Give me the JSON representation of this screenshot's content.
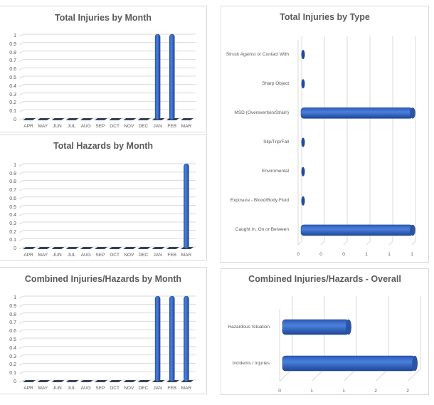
{
  "colors": {
    "bar": "#3a6fd0",
    "bar_dark": "#1f4a9e",
    "floor": "#1f2d4a",
    "grid": "#d9d9d9",
    "text": "#595959",
    "border": "#d9d9d9"
  },
  "chart_data": [
    {
      "id": "injuries_by_month",
      "type": "bar",
      "title": "Total Injuries by Month",
      "categories": [
        "APR",
        "MAY",
        "JUN",
        "JUL",
        "AUG",
        "SEP",
        "OCT",
        "NOV",
        "DEC",
        "JAN",
        "FEB",
        "MAR"
      ],
      "values": [
        0,
        0,
        0,
        0,
        0,
        0,
        0,
        0,
        0,
        1,
        1,
        0
      ],
      "yticks": [
        "1",
        "0.9",
        "0.8",
        "0.7",
        "0.6",
        "0.5",
        "0.4",
        "0.3",
        "0.2",
        "0.1",
        "0"
      ],
      "ylim": [
        0,
        1
      ],
      "xlabel": "",
      "ylabel": "",
      "grid": true,
      "style": "3d-cylinder"
    },
    {
      "id": "hazards_by_month",
      "type": "bar",
      "title": "Total Hazards by Month",
      "categories": [
        "APR",
        "MAY",
        "JUN",
        "JUL",
        "AUG",
        "SEP",
        "OCT",
        "NOV",
        "DEC",
        "JAN",
        "FEB",
        "MAR"
      ],
      "values": [
        0,
        0,
        0,
        0,
        0,
        0,
        0,
        0,
        0,
        0,
        0,
        1
      ],
      "yticks": [
        "1",
        "0.9",
        "0.8",
        "0.7",
        "0.6",
        "0.5",
        "0.4",
        "0.3",
        "0.2",
        "0.1",
        "0"
      ],
      "ylim": [
        0,
        1
      ],
      "xlabel": "",
      "ylabel": "",
      "grid": true,
      "style": "3d-cylinder"
    },
    {
      "id": "combined_by_month",
      "type": "bar",
      "title": "Combined Injuries/Hazards by Month",
      "categories": [
        "APR",
        "MAY",
        "JUN",
        "JUL",
        "AUG",
        "SEP",
        "OCT",
        "NOV",
        "DEC",
        "JAN",
        "FEB",
        "MAR"
      ],
      "values": [
        0,
        0,
        0,
        0,
        0,
        0,
        0,
        0,
        0,
        1,
        1,
        1
      ],
      "yticks": [
        "1",
        "0.9",
        "0.8",
        "0.7",
        "0.6",
        "0.5",
        "0.4",
        "0.3",
        "0.2",
        "0.1",
        "0"
      ],
      "ylim": [
        0,
        1
      ],
      "xlabel": "",
      "ylabel": "",
      "grid": true,
      "style": "3d-cylinder"
    },
    {
      "id": "injuries_by_type",
      "type": "bar",
      "orientation": "horizontal",
      "title": "Total Injuries by Type",
      "categories": [
        "Struck Against or Contact With",
        "Sharp Object",
        "MSD (Overexertion/Strain)",
        "Slip/Trip/Fall",
        "Enviromental",
        "Exposure - Blood/Body Fluid",
        "Caught In, On or Between"
      ],
      "values": [
        0,
        0,
        1,
        0,
        0,
        0,
        1
      ],
      "xticks": [
        "0",
        "0",
        "0",
        "1",
        "1",
        "1"
      ],
      "xlim": [
        0,
        1
      ],
      "xlabel": "",
      "ylabel": "",
      "grid": true,
      "style": "3d-cylinder"
    },
    {
      "id": "combined_overall",
      "type": "bar",
      "orientation": "horizontal",
      "title": "Combined Injuries/Hazards - Overall",
      "categories": [
        "Hazardous Situation",
        "Incidents / Injuries"
      ],
      "values": [
        1,
        2
      ],
      "xticks": [
        "0",
        "1",
        "1",
        "2",
        "2"
      ],
      "xlim": [
        0,
        2
      ],
      "xlabel": "",
      "ylabel": "",
      "grid": true,
      "style": "3d-cylinder"
    }
  ]
}
